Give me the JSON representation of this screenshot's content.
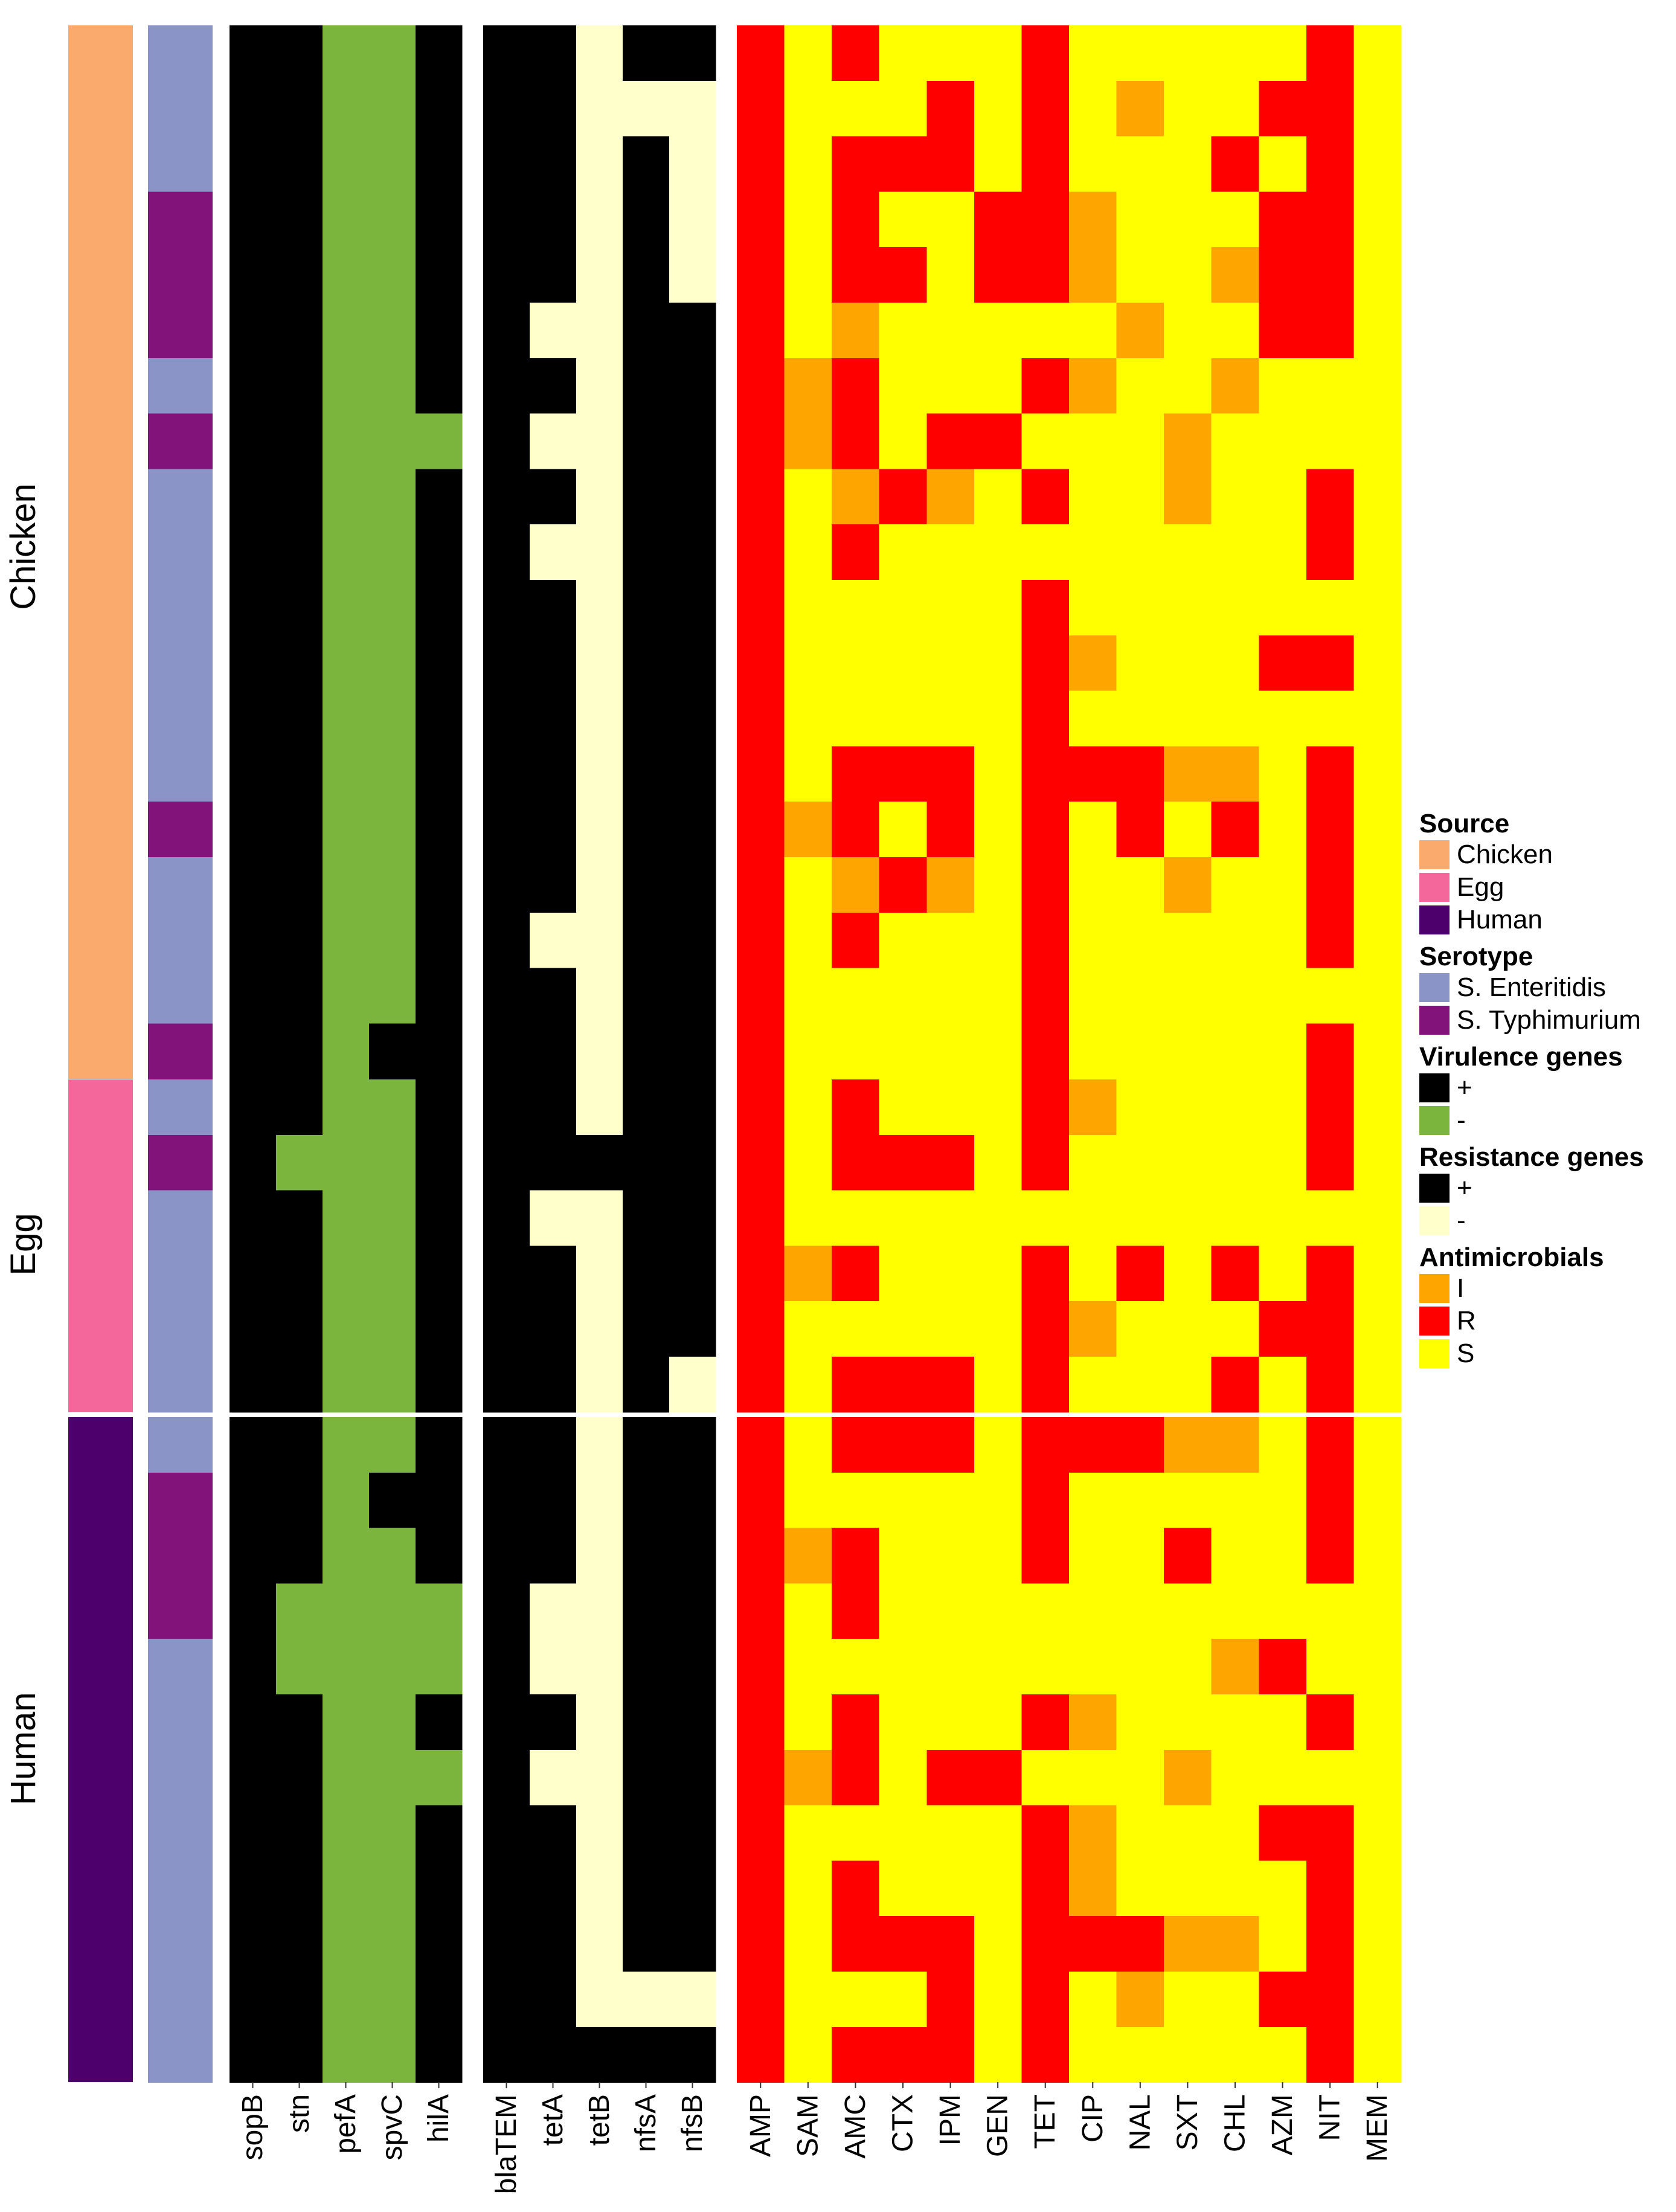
{
  "colors": {
    "source": {
      "Chicken": "#FBAA6D",
      "Egg": "#F4679A",
      "Human": "#4D006B"
    },
    "serotype": {
      "E": "#8A94C6",
      "T": "#82137B"
    },
    "virulence": {
      "+": "#000000",
      "-": "#7CB53E"
    },
    "resistance": {
      "+": "#000000",
      "-": "#FFFFCC"
    },
    "antimicrobial": {
      "I": "#FFA500",
      "R": "#FF0000",
      "S": "#FFFF00"
    }
  },
  "legend": {
    "source_title": "Source",
    "source_items": [
      "Chicken",
      "Egg",
      "Human"
    ],
    "serotype_title": "Serotype",
    "serotype_items": [
      "S. Enteritidis",
      "S. Typhimurium"
    ],
    "virulence_title": "Virulence genes",
    "virulence_items": [
      "+",
      "-"
    ],
    "resistance_title": "Resistance genes",
    "resistance_items": [
      "+",
      "-"
    ],
    "antimicrobial_title": "Antimicrobials",
    "antimicrobial_items": [
      "I",
      "R",
      "S"
    ]
  },
  "chart_data": {
    "type": "heatmap",
    "groups": [
      {
        "name": "Chicken",
        "rows": 19
      },
      {
        "name": "Egg",
        "rows": 6
      },
      {
        "name": "Human",
        "rows": 12
      }
    ],
    "virulence_columns": [
      "sopB",
      "stn",
      "pefA",
      "spvC",
      "hilA"
    ],
    "resistance_columns": [
      "blaTEM",
      "tetA",
      "tetB",
      "nfsA",
      "nfsB"
    ],
    "antimicrobial_columns": [
      "AMP",
      "SAM",
      "AMC",
      "CTX",
      "IPM",
      "GEN",
      "TET",
      "CIP",
      "NAL",
      "SXT",
      "CHL",
      "AZM",
      "NIT",
      "MEM"
    ],
    "serotype": [
      "E",
      "E",
      "E",
      "T",
      "T",
      "T",
      "E",
      "T",
      "E",
      "E",
      "E",
      "E",
      "E",
      "E",
      "T",
      "E",
      "E",
      "E",
      "T",
      "E",
      "T",
      "E",
      "E",
      "E",
      "E",
      "E",
      "T",
      "T",
      "T",
      "E",
      "E",
      "E",
      "E",
      "E",
      "E",
      "E",
      "E"
    ],
    "virulence": [
      "++--+",
      "++--+",
      "++--+",
      "++--+",
      "++--+",
      "++--+",
      "++--+",
      "++---",
      "++--+",
      "++--+",
      "++--+",
      "++--+",
      "++--+",
      "++--+",
      "++--+",
      "++--+",
      "++--+",
      "++--+",
      "++-++",
      "++--+",
      "+---+",
      "++--+",
      "++--+",
      "++--+",
      "++--+",
      "++--+",
      "++-++",
      "++--+",
      "+----",
      "+----",
      "++--+",
      "++---",
      "++--+",
      "++--+",
      "++--+",
      "++--+",
      "++--+"
    ],
    "resistance": [
      "++-++",
      "++---",
      "++-+-",
      "++-+-",
      "++-+-",
      "+--++",
      "++-++",
      "+--++",
      "++-++",
      "+--++",
      "++-++",
      "++-++",
      "++-++",
      "++-++",
      "++-++",
      "++-++",
      "+--++",
      "++-++",
      "++-++",
      "++-++",
      "+++++",
      "+--++",
      "++-++",
      "++-++",
      "++-+-",
      "++-++",
      "++-++",
      "++-++",
      "+--++",
      "+--++",
      "++-++",
      "+--++",
      "++-++",
      "++-++",
      "++-++",
      "++---",
      "+++++"
    ],
    "antimicrobial": [
      "RSRSSSRSSSSSRS",
      "RSSSRSRSISSRRS",
      "RSRRRSRSSSRSRS",
      "RSRSSRRISSSRRS",
      "RSRRSRRISSIRRS",
      "RSISSSSSISSRRS",
      "RIRSSSRISSISSS",
      "RIRSRRSSSISSSS",
      "RSIRISRSSISSRS",
      "RSRSSSSSSSSSRS",
      "RSSSSSRSSSSSSS",
      "RSSSSSRISSSRRS",
      "RSSSSSRSSSSSSS",
      "RSRRRSRRRIISRS",
      "RIRSRSRSRSRSRS",
      "RSIRISRSSISSRS",
      "RSRSSSRSSSSSRS",
      "RSSSSSRSSSSSSS",
      "RSSSSSRSSSSSRS",
      "RSRSSSRISSSSRS",
      "RSRRRSRSSSSSRS",
      "RSSSSSSSSSSSSS",
      "RIRSSSRSRSRSRS",
      "RSSSSSRISSSRRS",
      "RSRRRSRSSSRSRS",
      "RSRRRSRRRIISRS",
      "RSSSSSRSSSSSRS",
      "RIRSSSRSSRSSRS",
      "RSRSSSSSSSSSSS",
      "RSSSSSSSSSIRSS",
      "RSRSSSRISSSSRS",
      "RIRSRRSSSISSSS",
      "RSSSSSRISSSRRS",
      "RSRSSSRISSSSRS",
      "RSRRRSRRRIISRS",
      "RSSSRSRSISSRRS",
      "RSRRRSRSSSSSRS"
    ]
  }
}
